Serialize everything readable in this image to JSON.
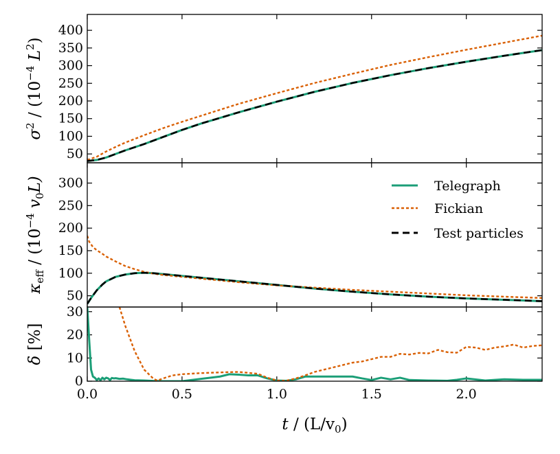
{
  "chart_data": [
    {
      "type": "line",
      "panel": "top",
      "ylabel_parts": [
        "σ",
        "2",
        " / (10",
        "−4",
        " L",
        "2",
        ")"
      ],
      "ylim": [
        25,
        445
      ],
      "yticks": [
        50,
        100,
        150,
        200,
        250,
        300,
        350,
        400
      ],
      "series": [
        {
          "name": "Telegraph",
          "color": "#1b9e77",
          "x": [
            0,
            0.05,
            0.1,
            0.15,
            0.2,
            0.3,
            0.4,
            0.5,
            0.6,
            0.8,
            1.0,
            1.2,
            1.4,
            1.6,
            1.8,
            2.0,
            2.2,
            2.4
          ],
          "y": [
            30,
            33,
            40,
            50,
            60,
            78,
            98,
            118,
            136,
            168,
            198,
            226,
            251,
            273,
            293,
            311,
            328,
            344
          ]
        },
        {
          "name": "Fickian",
          "color": "#d95f02",
          "x": [
            0,
            0.05,
            0.1,
            0.15,
            0.2,
            0.3,
            0.4,
            0.5,
            0.6,
            0.8,
            1.0,
            1.2,
            1.4,
            1.6,
            1.8,
            2.0,
            2.2,
            2.4
          ],
          "y": [
            33,
            42,
            57,
            70,
            82,
            103,
            123,
            141,
            158,
            192,
            222,
            251,
            277,
            302,
            324,
            345,
            365,
            385
          ]
        },
        {
          "name": "Test particles",
          "color": "#000000",
          "x": [
            0,
            0.05,
            0.1,
            0.15,
            0.2,
            0.3,
            0.4,
            0.5,
            0.6,
            0.8,
            1.0,
            1.2,
            1.4,
            1.6,
            1.8,
            2.0,
            2.2,
            2.4
          ],
          "y": [
            30,
            33,
            40,
            50,
            60,
            78,
            98,
            118,
            136,
            168,
            198,
            226,
            251,
            273,
            293,
            311,
            328,
            344
          ]
        }
      ]
    },
    {
      "type": "line",
      "panel": "middle",
      "ylabel_parts": [
        "κ",
        "eff",
        " / (10",
        "−4",
        " v",
        "0",
        "L)"
      ],
      "ylim": [
        25,
        345
      ],
      "yticks": [
        50,
        100,
        150,
        200,
        250,
        300
      ],
      "legend_position": "top-right",
      "legend": [
        "Telegraph",
        "Fickian",
        "Test particles"
      ],
      "series": [
        {
          "name": "Telegraph",
          "color": "#1b9e77",
          "x": [
            0,
            0.02,
            0.05,
            0.08,
            0.1,
            0.15,
            0.2,
            0.25,
            0.3,
            0.35,
            0.4,
            0.5,
            0.6,
            0.8,
            1.0,
            1.2,
            1.4,
            1.6,
            1.8,
            2.0,
            2.2,
            2.4
          ],
          "y": [
            32,
            45,
            62,
            75,
            82,
            92,
            97,
            100,
            101,
            100,
            98,
            94,
            90,
            82,
            74,
            66,
            59,
            53,
            48,
            44,
            41,
            38
          ]
        },
        {
          "name": "Fickian",
          "color": "#d95f02",
          "x": [
            0,
            0.01,
            0.03,
            0.05,
            0.08,
            0.1,
            0.15,
            0.2,
            0.25,
            0.3,
            0.35,
            0.4,
            0.5,
            0.6,
            0.8,
            1.0,
            1.2,
            1.4,
            1.6,
            1.8,
            2.0,
            2.2,
            2.4
          ],
          "y": [
            183,
            170,
            158,
            151,
            143,
            137,
            126,
            116,
            109,
            103,
            99,
            96,
            92,
            88,
            80,
            73,
            68,
            63,
            59,
            55,
            51,
            48,
            45
          ]
        },
        {
          "name": "Test particles",
          "color": "#000000",
          "x": [
            0,
            0.02,
            0.05,
            0.08,
            0.1,
            0.15,
            0.2,
            0.25,
            0.3,
            0.35,
            0.4,
            0.5,
            0.6,
            0.8,
            1.0,
            1.2,
            1.4,
            1.6,
            1.8,
            2.0,
            2.2,
            2.4
          ],
          "y": [
            32,
            45,
            62,
            75,
            82,
            92,
            97,
            100,
            101,
            100,
            98,
            94,
            90,
            82,
            74,
            66,
            59,
            53,
            48,
            44,
            41,
            38
          ]
        }
      ]
    },
    {
      "type": "line",
      "panel": "bottom",
      "ylabel_parts": [
        "δ",
        "",
        " [%]",
        "",
        "",
        "",
        ""
      ],
      "ylim": [
        0,
        32
      ],
      "yticks": [
        0,
        10,
        20,
        30
      ],
      "xlabel_parts": [
        "t",
        " / (L/v",
        "0",
        ")"
      ],
      "xlim": [
        0,
        2.4
      ],
      "xticks": [
        0.0,
        0.5,
        1.0,
        1.5,
        2.0
      ],
      "xtick_labels": [
        "0.0",
        "0.5",
        "1.0",
        "1.5",
        "2.0"
      ],
      "series": [
        {
          "name": "Telegraph",
          "color": "#1b9e77",
          "x": [
            0,
            0.01,
            0.02,
            0.03,
            0.04,
            0.05,
            0.06,
            0.07,
            0.08,
            0.09,
            0.1,
            0.11,
            0.12,
            0.13,
            0.14,
            0.15,
            0.17,
            0.19,
            0.21,
            0.23,
            0.25,
            0.3,
            0.35,
            0.4,
            0.5,
            0.6,
            0.7,
            0.75,
            0.8,
            0.85,
            0.9,
            0.95,
            1.0,
            1.05,
            1.1,
            1.15,
            1.2,
            1.3,
            1.4,
            1.45,
            1.5,
            1.55,
            1.6,
            1.65,
            1.7,
            1.8,
            1.9,
            1.95,
            2.0,
            2.1,
            2.2,
            2.3,
            2.4
          ],
          "y": [
            32,
            18,
            5,
            2,
            1.5,
            0.5,
            1.2,
            0.4,
            1.5,
            0.8,
            1.5,
            1.2,
            0.5,
            1.4,
            1.2,
            1.3,
            1.0,
            1.1,
            0.8,
            0.6,
            0.4,
            0.3,
            0.1,
            0.0,
            0.0,
            1.0,
            2.0,
            3.0,
            2.8,
            2.5,
            2.5,
            1.2,
            0.3,
            0.2,
            0.8,
            2.0,
            2.0,
            2.0,
            2.0,
            1.2,
            0.5,
            1.5,
            0.8,
            1.5,
            0.5,
            0.3,
            0.2,
            0.6,
            1.2,
            0.3,
            0.8,
            0.6,
            0.6
          ]
        },
        {
          "name": "Fickian",
          "color": "#d95f02",
          "x": [
            0.17,
            0.2,
            0.25,
            0.3,
            0.35,
            0.37,
            0.4,
            0.45,
            0.5,
            0.6,
            0.7,
            0.8,
            0.9,
            0.95,
            1.0,
            1.05,
            1.1,
            1.15,
            1.2,
            1.3,
            1.4,
            1.45,
            1.5,
            1.55,
            1.6,
            1.65,
            1.7,
            1.75,
            1.8,
            1.85,
            1.9,
            1.95,
            2.0,
            2.05,
            2.1,
            2.15,
            2.2,
            2.25,
            2.3,
            2.35,
            2.4
          ],
          "y": [
            32,
            24,
            13,
            5,
            1,
            0.3,
            1.2,
            2.5,
            3.0,
            3.5,
            3.8,
            4.0,
            3.2,
            1.5,
            0.3,
            0.2,
            1.2,
            2.5,
            4.0,
            6.0,
            8.0,
            8.5,
            9.5,
            10.5,
            10.5,
            11.8,
            11.5,
            12.2,
            12.0,
            13.5,
            12.5,
            12.3,
            14.8,
            14.5,
            13.5,
            14.5,
            15.0,
            15.8,
            14.5,
            15.2,
            15.5
          ]
        }
      ]
    }
  ]
}
